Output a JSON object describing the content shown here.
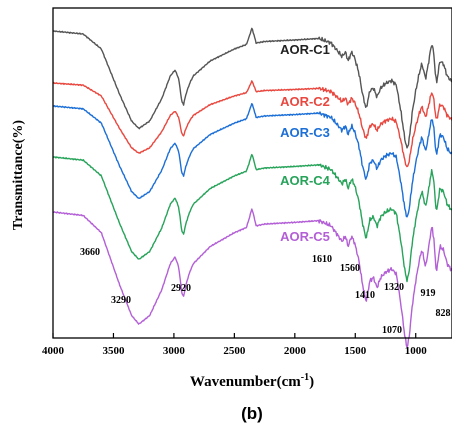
{
  "chart_data": {
    "type": "line",
    "xlabel": "Wavenumber(cm",
    "xlabel_sup": "-1",
    "xlabel_close": ")",
    "ylabel": "Transmittance(%)",
    "xlim": [
      4000,
      700
    ],
    "x_reversed": true,
    "x_ticks": [
      "4000",
      "3500",
      "3000",
      "2500",
      "2000",
      "1500",
      "1000"
    ],
    "y_ticks": [],
    "panel_label": "(b)",
    "series": [
      {
        "name": "AOR-C1",
        "color": "#555555",
        "offset": 0
      },
      {
        "name": "AOR-C2",
        "color": "#e8483f",
        "offset": 1
      },
      {
        "name": "AOR-C3",
        "color": "#1c6fd6",
        "offset": 2
      },
      {
        "name": "AOR-C4",
        "color": "#27a35a",
        "offset": 3
      },
      {
        "name": "AOR-C5",
        "color": "#b35fd6",
        "offset": 4
      }
    ],
    "peak_labels": [
      {
        "text": "3660",
        "wavenumber": 3660
      },
      {
        "text": "3290",
        "wavenumber": 3290
      },
      {
        "text": "2920",
        "wavenumber": 2920
      },
      {
        "text": "1610",
        "wavenumber": 1610
      },
      {
        "text": "1560",
        "wavenumber": 1560
      },
      {
        "text": "1410",
        "wavenumber": 1410
      },
      {
        "text": "1320",
        "wavenumber": 1320
      },
      {
        "text": "1070",
        "wavenumber": 1070
      },
      {
        "text": "919",
        "wavenumber": 919
      },
      {
        "text": "828",
        "wavenumber": 828
      }
    ]
  }
}
